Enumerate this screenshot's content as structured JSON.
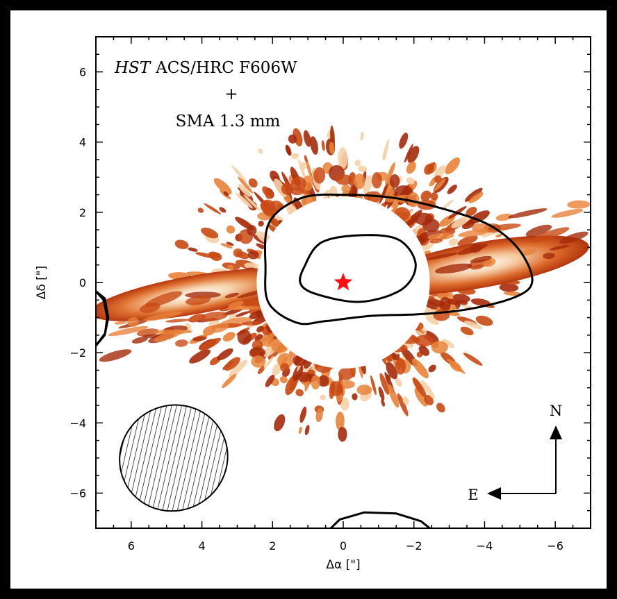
{
  "chart_data": {
    "type": "image-contour",
    "xlabel": "Δα [\"]",
    "ylabel": "Δδ [\"]",
    "xlim": [
      7,
      -7
    ],
    "ylim": [
      -7,
      7
    ],
    "x_ticks": [
      6,
      4,
      2,
      0,
      -2,
      -4,
      -6
    ],
    "y_ticks": [
      6,
      4,
      2,
      0,
      -2,
      -4,
      -6
    ],
    "x_tick_labels": [
      "6",
      "4",
      "2",
      "0",
      "−2",
      "−4",
      "−6"
    ],
    "y_tick_labels": [
      "6",
      "4",
      "2",
      "0",
      "−2",
      "−4",
      "−6"
    ],
    "annotations": {
      "instrument_italic": "HST",
      "instrument_rest": "ACS/HRC F606W",
      "plus": "+",
      "sma": "SMA 1.3 mm"
    },
    "compass": {
      "north": "N",
      "east": "E"
    },
    "star_position": [
      0,
      0
    ],
    "star_color": "#ff1010",
    "colormap": [
      "#ffffff",
      "#f5d0a8",
      "#e8823a",
      "#c94a14",
      "#a52a0a"
    ],
    "occulted_radius_arcsec": 2.45,
    "contour_color": "#000000",
    "beam": {
      "center": [
        4.8,
        -5.0
      ],
      "major_arcsec": 3.6,
      "minor_arcsec": 3.0,
      "hatched": true
    }
  }
}
